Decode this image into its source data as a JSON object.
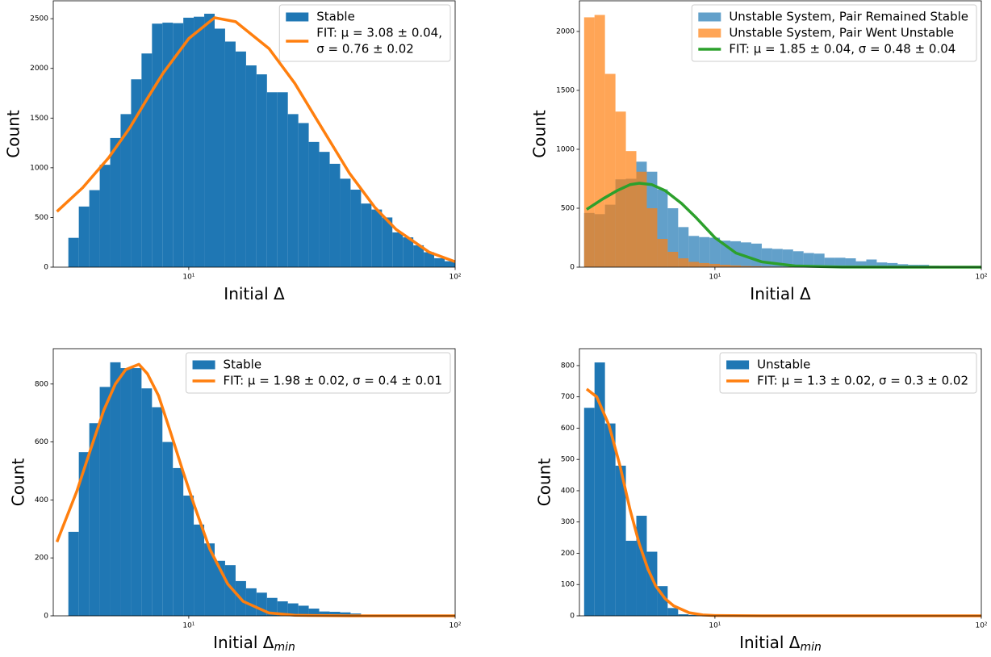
{
  "chart_data": [
    {
      "type": "histogram",
      "xscale": "log",
      "xlabel": "Initial Δ",
      "ylabel": "Count",
      "xlim": [
        3.1,
        100
      ],
      "ylim": [
        0,
        2680
      ],
      "xticks": [
        {
          "value": 10,
          "label": "10¹"
        },
        {
          "value": 100,
          "label": "10²"
        }
      ],
      "yticks": [
        0,
        500,
        1000,
        1500,
        2000,
        2500
      ],
      "bins": [
        3.532,
        3.866,
        4.232,
        4.632,
        5.07,
        5.549,
        6.074,
        6.648,
        7.277,
        7.964,
        8.717,
        9.541,
        10.44,
        11.43,
        12.51,
        13.69,
        14.99,
        16.41,
        17.96,
        19.66,
        21.51,
        23.55,
        25.78,
        28.21,
        30.88,
        33.81,
        37,
        40.5,
        44.33,
        48.53,
        53.11,
        58.13,
        63.63,
        69.65,
        76.24,
        83.44,
        91.33,
        100
      ],
      "series": [
        {
          "name": "Stable",
          "color": "#1f77b4",
          "opacity": 1,
          "values": [
            295,
            610,
            775,
            1030,
            1300,
            1540,
            1890,
            2150,
            2450,
            2460,
            2455,
            2510,
            2520,
            2550,
            2400,
            2270,
            2170,
            2030,
            1940,
            1760,
            1760,
            1540,
            1450,
            1260,
            1160,
            1040,
            890,
            780,
            640,
            580,
            500,
            350,
            300,
            220,
            150,
            90,
            60
          ]
        }
      ],
      "fits": [
        {
          "name": [
            "FIT: μ = 3.08 ± 0.04,",
            "σ = 0.76 ± 0.02"
          ],
          "color": "#ff7f0e",
          "x": [
            3.2,
            4,
            5,
            6,
            7,
            8,
            10,
            12.5,
            15,
            20,
            25,
            30,
            40,
            50,
            60,
            80,
            100
          ],
          "y": [
            560,
            800,
            1100,
            1400,
            1700,
            1950,
            2300,
            2510,
            2470,
            2200,
            1850,
            1500,
            950,
            600,
            380,
            150,
            55
          ]
        }
      ],
      "legend": "upper right"
    },
    {
      "type": "histogram",
      "xscale": "log",
      "xlabel": "Initial Δ",
      "ylabel": "Count",
      "xlim": [
        3.1,
        100
      ],
      "ylim": [
        0,
        2260
      ],
      "xticks": [
        {
          "value": 10,
          "label": "10¹"
        },
        {
          "value": 100,
          "label": "10²"
        }
      ],
      "yticks": [
        0,
        500,
        1000,
        1500,
        2000
      ],
      "bins": [
        3.228,
        3.532,
        3.866,
        4.232,
        4.632,
        5.07,
        5.549,
        6.074,
        6.648,
        7.277,
        7.964,
        8.717,
        9.541,
        10.44,
        11.43,
        12.51,
        13.69,
        14.99,
        16.41,
        17.96,
        19.66,
        21.51,
        23.55,
        25.78,
        28.21,
        30.88,
        33.81,
        37,
        40.5,
        44.33,
        48.53,
        53.11,
        58.13,
        63.63,
        69.65,
        76.24,
        83.44,
        91.33,
        100
      ],
      "series": [
        {
          "name": "Unstable System, Pair Remained Stable",
          "color": "#1f77b4",
          "opacity": 0.7,
          "values": [
            460,
            450,
            530,
            745,
            750,
            895,
            810,
            660,
            500,
            340,
            265,
            255,
            250,
            225,
            220,
            210,
            200,
            160,
            155,
            150,
            135,
            120,
            115,
            80,
            80,
            75,
            50,
            65,
            40,
            35,
            25,
            20,
            20,
            12,
            10,
            8,
            5,
            3
          ]
        },
        {
          "name": "Unstable System, Pair Went Unstable",
          "color": "#ff7f0e",
          "opacity": 0.7,
          "values": [
            2120,
            2140,
            1640,
            1320,
            985,
            810,
            500,
            240,
            130,
            75,
            45,
            35,
            28,
            20,
            15,
            10,
            8,
            5,
            4,
            3,
            2,
            0,
            0,
            0,
            0,
            0,
            0,
            0,
            0,
            0,
            0,
            0,
            0,
            0,
            0,
            0,
            0,
            0
          ]
        }
      ],
      "fits": [
        {
          "name": [
            "FIT: μ = 1.85 ± 0.04, σ = 0.48 ± 0.04"
          ],
          "color": "#2ca02c",
          "x": [
            3.3,
            3.8,
            4.3,
            4.8,
            5.2,
            5.8,
            6.5,
            7.5,
            8.5,
            10,
            12,
            15,
            20,
            30,
            50,
            100
          ],
          "y": [
            490,
            580,
            650,
            700,
            712,
            700,
            650,
            540,
            420,
            250,
            120,
            45,
            10,
            1,
            0,
            0
          ]
        }
      ],
      "legend": "upper right"
    },
    {
      "type": "histogram",
      "xscale": "log",
      "xlabel": "Initial Δ",
      "xlabel_sub": "min",
      "ylabel": "Count",
      "xlim": [
        3.1,
        100
      ],
      "ylim": [
        0,
        922
      ],
      "xticks": [
        {
          "value": 10,
          "label": "10¹"
        },
        {
          "value": 100,
          "label": "10²"
        }
      ],
      "yticks": [
        0,
        200,
        400,
        600,
        800
      ],
      "bins": [
        3.532,
        3.866,
        4.232,
        4.632,
        5.07,
        5.549,
        6.074,
        6.648,
        7.277,
        7.964,
        8.717,
        9.541,
        10.44,
        11.43,
        12.51,
        13.69,
        14.99,
        16.41,
        17.96,
        19.66,
        21.51,
        23.55,
        25.78,
        28.21,
        30.88,
        33.81,
        37,
        40.5,
        44.33,
        48.53,
        53.11,
        58.13,
        63.63,
        69.65,
        76.24,
        83.44,
        91.33,
        100
      ],
      "series": [
        {
          "name": "Stable",
          "color": "#1f77b4",
          "opacity": 1,
          "values": [
            290,
            565,
            665,
            790,
            875,
            855,
            855,
            785,
            720,
            600,
            510,
            415,
            315,
            250,
            190,
            175,
            120,
            95,
            80,
            62,
            50,
            43,
            35,
            25,
            15,
            14,
            12,
            8,
            3,
            2,
            1,
            1,
            0,
            0,
            0,
            0,
            0
          ]
        }
      ],
      "fits": [
        {
          "name": [
            "FIT: μ = 1.98 ± 0.02, σ = 0.4 ± 0.01"
          ],
          "color": "#ff7f0e",
          "x": [
            3.2,
            3.8,
            4.3,
            4.8,
            5.3,
            5.8,
            6.5,
            7,
            7.7,
            8.5,
            9.5,
            10.5,
            12,
            14,
            16,
            20,
            25,
            40,
            100
          ],
          "y": [
            255,
            430,
            580,
            710,
            800,
            850,
            868,
            835,
            760,
            640,
            500,
            380,
            230,
            110,
            50,
            10,
            2,
            0,
            0
          ]
        }
      ],
      "legend": "upper right"
    },
    {
      "type": "histogram",
      "xscale": "log",
      "xlabel": "Initial Δ",
      "xlabel_sub": "min",
      "ylabel": "Count",
      "xlim": [
        3.1,
        100
      ],
      "ylim": [
        0,
        854
      ],
      "xticks": [
        {
          "value": 10,
          "label": "10¹"
        },
        {
          "value": 100,
          "label": "10²"
        }
      ],
      "yticks": [
        0,
        100,
        200,
        300,
        400,
        500,
        600,
        700,
        800
      ],
      "bins": [
        3.228,
        3.532,
        3.866,
        4.232,
        4.632,
        5.07,
        5.549,
        6.074,
        6.648,
        7.277,
        7.964,
        8.717,
        9.541,
        10.44,
        11.43,
        12.51,
        13.69,
        14.99,
        16.41,
        17.96,
        19.66,
        21.51,
        23.55,
        25.78,
        28.21,
        30.88,
        33.81,
        37,
        40.5,
        44.33,
        48.53,
        53.11,
        58.13,
        63.63,
        69.65,
        76.24,
        83.44,
        91.33,
        100
      ],
      "series": [
        {
          "name": "Unstable",
          "color": "#1f77b4",
          "opacity": 1,
          "values": [
            665,
            810,
            615,
            480,
            240,
            320,
            205,
            95,
            25,
            5,
            3,
            0,
            0,
            0,
            0,
            0,
            0,
            0,
            0,
            0,
            0,
            0,
            0,
            0,
            0,
            0,
            0,
            0,
            0,
            0,
            0,
            0,
            0,
            0,
            0,
            0,
            0,
            0
          ]
        }
      ],
      "fits": [
        {
          "name": [
            "FIT: μ = 1.3 ± 0.02, σ = 0.3 ± 0.02"
          ],
          "color": "#ff7f0e",
          "x": [
            3.3,
            3.6,
            4,
            4.4,
            4.8,
            5.2,
            5.6,
            6,
            6.5,
            7,
            8,
            9,
            10,
            15,
            100
          ],
          "y": [
            725,
            700,
            610,
            480,
            340,
            230,
            150,
            95,
            55,
            32,
            10,
            3,
            1,
            0,
            0
          ]
        }
      ],
      "legend": "upper right"
    }
  ]
}
